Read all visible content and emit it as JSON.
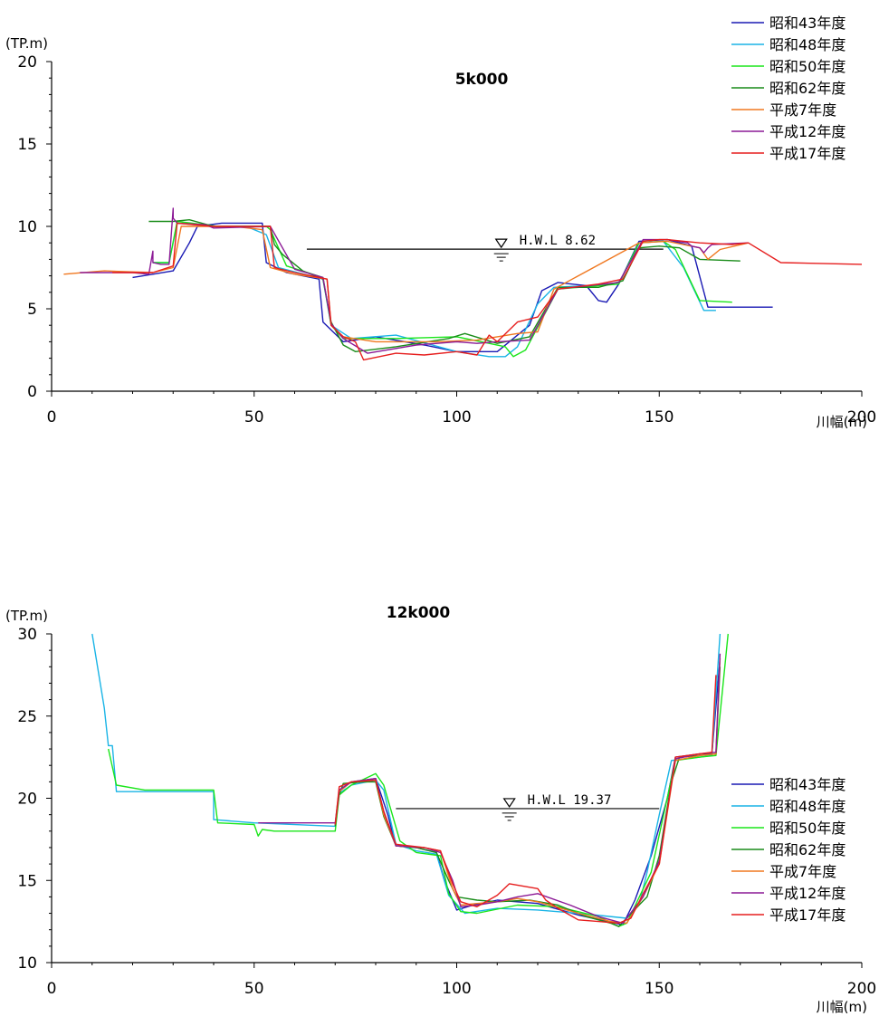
{
  "chart_data": [
    {
      "type": "line",
      "title": "5k000",
      "ylabel": "(TP.m)",
      "xlabel": "川幅(m)",
      "xlim": [
        0,
        200
      ],
      "ylim": [
        0,
        20
      ],
      "xticks": [
        "0",
        "50",
        "100",
        "150",
        "200"
      ],
      "yticks": [
        "0",
        "5",
        "10",
        "15",
        "20"
      ],
      "legend_position": "top-right",
      "hwl": {
        "label": "H.W.L 8.62",
        "value": 8.62,
        "x_range": [
          63,
          151
        ],
        "marker_x": 111
      },
      "series": [
        {
          "name": "昭和43年度",
          "color": "#1a1ab4",
          "x": [
            20,
            25,
            30,
            34,
            36,
            42,
            47,
            52,
            53,
            58,
            66,
            67,
            72,
            80,
            92,
            100,
            110,
            118,
            121,
            125,
            132,
            135,
            137,
            140,
            145,
            152,
            158,
            162,
            170,
            178
          ],
          "y": [
            6.9,
            7.1,
            7.3,
            9.0,
            10.0,
            10.2,
            10.2,
            10.2,
            7.8,
            7.2,
            6.8,
            4.2,
            3.0,
            3.3,
            2.8,
            2.4,
            2.4,
            4.0,
            6.1,
            6.6,
            6.4,
            5.5,
            5.4,
            6.5,
            9.1,
            9.2,
            8.8,
            5.1,
            5.1,
            5.1
          ]
        },
        {
          "name": "昭和48年度",
          "color": "#1ab4e6",
          "x": [
            25,
            29,
            31,
            40,
            48,
            53,
            56,
            67,
            69,
            74,
            85,
            100,
            108,
            112,
            115,
            120,
            124,
            140,
            145,
            151,
            156,
            161,
            164
          ],
          "y": [
            7.8,
            7.8,
            10.2,
            10.0,
            10.0,
            9.5,
            7.5,
            6.8,
            4.0,
            3.2,
            3.4,
            2.4,
            2.1,
            2.1,
            2.7,
            5.3,
            6.3,
            6.5,
            9.0,
            9.1,
            7.5,
            4.9,
            4.9
          ]
        },
        {
          "name": "昭和50年度",
          "color": "#1ae61a",
          "x": [
            25,
            29,
            31,
            41,
            53,
            54,
            58,
            67,
            69,
            72,
            85,
            100,
            108,
            112,
            114,
            117,
            125,
            140,
            145,
            151,
            154,
            160,
            168
          ],
          "y": [
            7.8,
            7.8,
            10.3,
            10.0,
            10.0,
            9.8,
            7.6,
            6.9,
            4.0,
            3.2,
            3.2,
            3.3,
            2.9,
            2.7,
            2.1,
            2.5,
            6.2,
            6.5,
            9.0,
            9.1,
            8.6,
            5.5,
            5.4
          ]
        },
        {
          "name": "昭和62年度",
          "color": "#1a8c1a",
          "x": [
            24,
            30,
            34,
            40,
            54,
            55,
            57,
            62,
            67,
            69,
            72,
            75,
            85,
            98,
            102,
            110,
            118,
            125,
            135,
            141,
            145,
            150,
            155,
            160,
            170
          ],
          "y": [
            10.3,
            10.3,
            10.4,
            10.0,
            10.0,
            8.9,
            8.3,
            7.3,
            6.8,
            4.2,
            2.8,
            2.4,
            2.7,
            3.2,
            3.5,
            2.9,
            3.3,
            6.3,
            6.3,
            6.7,
            8.7,
            8.8,
            8.7,
            8.0,
            7.9
          ]
        },
        {
          "name": "平成7年度",
          "color": "#f07820",
          "x": [
            3,
            13,
            25,
            30,
            32,
            45,
            52,
            54,
            60,
            68,
            69,
            72,
            80,
            95,
            105,
            115,
            120,
            124,
            145,
            152,
            160,
            162,
            165,
            172
          ],
          "y": [
            7.1,
            7.3,
            7.2,
            7.5,
            10.0,
            10.0,
            9.8,
            7.5,
            7.1,
            6.8,
            4.0,
            3.3,
            3.0,
            3.0,
            3.1,
            3.5,
            3.6,
            6.2,
            9.0,
            9.1,
            8.7,
            8.0,
            8.6,
            9.0
          ]
        },
        {
          "name": "平成12年度",
          "color": "#8c1a96",
          "x": [
            7,
            20,
            24,
            25,
            25,
            27,
            29,
            30,
            30,
            31,
            38,
            40,
            54,
            60,
            67,
            69,
            72,
            78,
            90,
            100,
            105,
            110,
            118,
            125,
            140,
            146,
            152,
            157,
            158,
            160,
            161,
            162,
            163,
            172
          ],
          "y": [
            7.2,
            7.2,
            7.1,
            8.5,
            7.8,
            7.7,
            7.7,
            11.1,
            10.5,
            10.2,
            10.1,
            9.9,
            10.0,
            7.4,
            6.9,
            4.1,
            3.2,
            2.3,
            2.8,
            3.0,
            2.9,
            3.0,
            3.1,
            6.2,
            6.6,
            9.2,
            9.2,
            9.0,
            8.8,
            8.7,
            8.4,
            8.7,
            8.9,
            9.0
          ]
        },
        {
          "name": "平成17年度",
          "color": "#e61e1e",
          "x": [
            15,
            25,
            30,
            31,
            40,
            54,
            55,
            60,
            68,
            69,
            72,
            75,
            77,
            85,
            92,
            100,
            105,
            108,
            110,
            115,
            120,
            125,
            135,
            141,
            146,
            150,
            152,
            160,
            168,
            172,
            180,
            200
          ],
          "y": [
            7.2,
            7.2,
            7.6,
            10.2,
            10.0,
            10.0,
            7.5,
            7.2,
            6.8,
            4.0,
            3.3,
            3.0,
            1.9,
            2.3,
            2.2,
            2.4,
            2.2,
            3.4,
            3.0,
            4.2,
            4.5,
            6.2,
            6.5,
            6.8,
            9.1,
            9.2,
            9.2,
            9.0,
            8.9,
            9.0,
            7.8,
            7.7
          ]
        }
      ]
    },
    {
      "type": "line",
      "title": "12k000",
      "ylabel": "(TP.m)",
      "xlabel": "川幅(m)",
      "xlim": [
        0,
        200
      ],
      "ylim": [
        10,
        30
      ],
      "xticks": [
        "0",
        "50",
        "100",
        "150",
        "200"
      ],
      "yticks": [
        "10",
        "15",
        "20",
        "25",
        "30"
      ],
      "legend_position": "center-right",
      "hwl": {
        "label": "H.W.L 19.37",
        "value": 19.37,
        "x_range": [
          85,
          150
        ],
        "marker_x": 113
      },
      "series": [
        {
          "name": "昭和43年度",
          "color": "#1a1ab4",
          "x": [
            70,
            71,
            74,
            80,
            83,
            85,
            90,
            95,
            97,
            100,
            104,
            110,
            120,
            130,
            141,
            144,
            148,
            152,
            154,
            160,
            163,
            165
          ],
          "y": [
            18.3,
            20.5,
            21.0,
            21.2,
            19.0,
            17.1,
            17.0,
            16.7,
            15.0,
            13.2,
            13.5,
            13.8,
            13.6,
            12.9,
            12.3,
            13.8,
            16.5,
            20.0,
            22.5,
            22.7,
            22.7,
            28.5
          ]
        },
        {
          "name": "昭和48年度",
          "color": "#1ab4e6",
          "x": [
            10,
            13,
            14,
            15,
            16,
            40,
            40,
            50,
            70,
            71,
            74,
            80,
            82,
            85,
            90,
            95,
            98,
            102,
            110,
            120,
            130,
            142,
            145,
            147,
            150,
            153,
            160,
            163,
            165
          ],
          "y": [
            30.0,
            25.5,
            23.2,
            23.2,
            20.4,
            20.4,
            18.7,
            18.5,
            18.3,
            20.3,
            20.8,
            21.1,
            20.5,
            17.2,
            16.8,
            16.6,
            14.1,
            13.0,
            13.3,
            13.2,
            13.0,
            12.7,
            13.5,
            15.5,
            19.0,
            22.3,
            22.5,
            22.6,
            30.0
          ]
        },
        {
          "name": "昭和50年度",
          "color": "#1ae61a",
          "x": [
            14,
            16,
            23,
            40,
            41,
            50,
            51,
            52,
            55,
            60,
            70,
            71,
            74,
            80,
            82,
            86,
            90,
            96,
            98,
            101,
            105,
            115,
            125,
            135,
            140,
            142,
            148,
            154,
            160,
            164,
            167
          ],
          "y": [
            23.0,
            20.8,
            20.5,
            20.5,
            18.5,
            18.4,
            17.7,
            18.1,
            18.0,
            18.0,
            18.0,
            20.2,
            20.8,
            21.5,
            20.8,
            17.4,
            16.7,
            16.5,
            14.2,
            13.1,
            13.0,
            13.5,
            13.4,
            12.8,
            12.2,
            12.4,
            15.5,
            22.3,
            22.5,
            22.6,
            30.0
          ]
        },
        {
          "name": "昭和62年度",
          "color": "#1a8c1a",
          "x": [
            70,
            71,
            72,
            77,
            80,
            82,
            85,
            90,
            95,
            98,
            100,
            105,
            110,
            118,
            125,
            132,
            138,
            140,
            145,
            147,
            150,
            153,
            155,
            160,
            164,
            165
          ],
          "y": [
            18.3,
            20.2,
            20.9,
            21.0,
            21.0,
            18.9,
            17.1,
            17.0,
            16.7,
            15.0,
            14.0,
            13.8,
            13.7,
            13.8,
            13.5,
            12.8,
            12.4,
            12.2,
            13.5,
            14.0,
            16.5,
            21.0,
            22.5,
            22.6,
            22.7,
            28.0
          ]
        },
        {
          "name": "平成7年度",
          "color": "#f07820",
          "x": [
            70,
            71,
            74,
            80,
            82,
            85,
            92,
            96,
            99,
            101,
            105,
            110,
            115,
            120,
            130,
            138,
            142,
            146,
            150,
            154,
            160,
            164,
            165
          ],
          "y": [
            18.4,
            20.4,
            21.0,
            21.1,
            19.0,
            17.1,
            17.0,
            16.8,
            14.5,
            13.5,
            13.6,
            13.7,
            13.9,
            13.7,
            13.0,
            12.5,
            12.4,
            14.0,
            16.0,
            22.3,
            22.6,
            22.7,
            28.5
          ]
        },
        {
          "name": "平成12年度",
          "color": "#8c1a96",
          "x": [
            51,
            70,
            71,
            74,
            80,
            82,
            85,
            92,
            96,
            99,
            101,
            105,
            110,
            115,
            120,
            128,
            135,
            141,
            146,
            150,
            154,
            160,
            164,
            165
          ],
          "y": [
            18.5,
            18.5,
            20.5,
            21.0,
            21.2,
            19.2,
            17.1,
            17.0,
            16.7,
            15.0,
            13.4,
            13.5,
            13.7,
            14.0,
            14.2,
            13.5,
            12.8,
            12.4,
            14.0,
            16.2,
            22.4,
            22.7,
            22.8,
            28.8
          ]
        },
        {
          "name": "平成17年度",
          "color": "#e61e1e",
          "x": [
            70,
            71,
            74,
            80,
            82,
            85,
            92,
            96,
            99,
            101,
            105,
            110,
            113,
            120,
            122,
            125,
            130,
            135,
            140,
            143,
            146,
            150,
            154,
            160,
            163,
            164
          ],
          "y": [
            18.4,
            20.7,
            21.0,
            21.1,
            19.2,
            17.2,
            17.0,
            16.8,
            14.8,
            13.7,
            13.4,
            14.1,
            14.8,
            14.5,
            13.8,
            13.3,
            12.6,
            12.5,
            12.4,
            12.7,
            14.2,
            16.0,
            22.5,
            22.7,
            22.8,
            27.5
          ]
        }
      ]
    }
  ]
}
